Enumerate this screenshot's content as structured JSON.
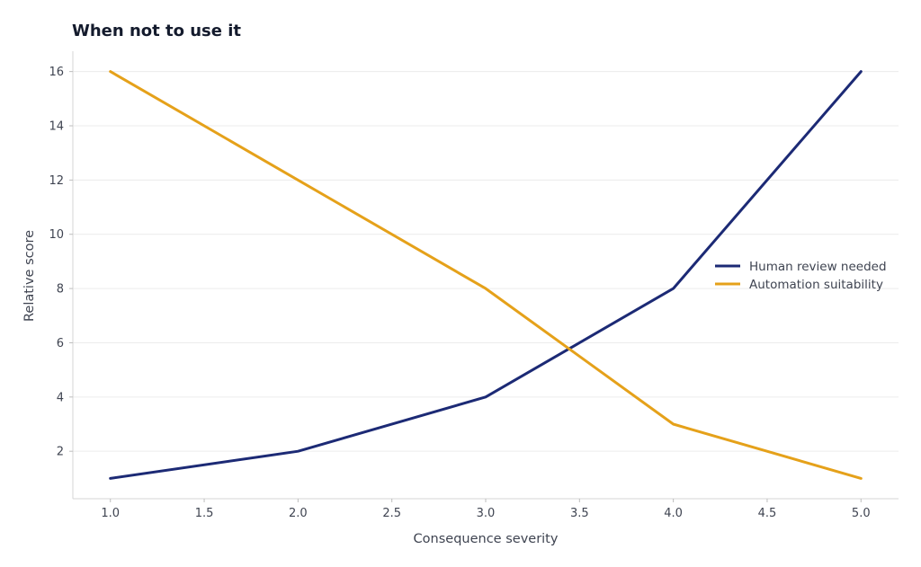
{
  "chart_data": {
    "type": "line",
    "title": "When not to use it",
    "xlabel": "Consequence severity",
    "ylabel": "Relative score",
    "xlim": [
      0.8,
      5.2
    ],
    "ylim": [
      0.25,
      16.75
    ],
    "x_ticks": [
      "1.0",
      "1.5",
      "2.0",
      "2.5",
      "3.0",
      "3.5",
      "4.0",
      "4.5",
      "5.0"
    ],
    "y_ticks": [
      "2",
      "4",
      "6",
      "8",
      "10",
      "12",
      "14",
      "16"
    ],
    "x": [
      1,
      2,
      3,
      4,
      5
    ],
    "series": [
      {
        "name": "Human review needed",
        "values": [
          1,
          2,
          4,
          8,
          16
        ],
        "color": "#1c2a75"
      },
      {
        "name": "Automation suitability",
        "values": [
          16,
          12,
          8,
          3,
          1
        ],
        "color": "#e5a11a"
      }
    ],
    "grid": "horizontal",
    "legend_position": "center-right"
  }
}
